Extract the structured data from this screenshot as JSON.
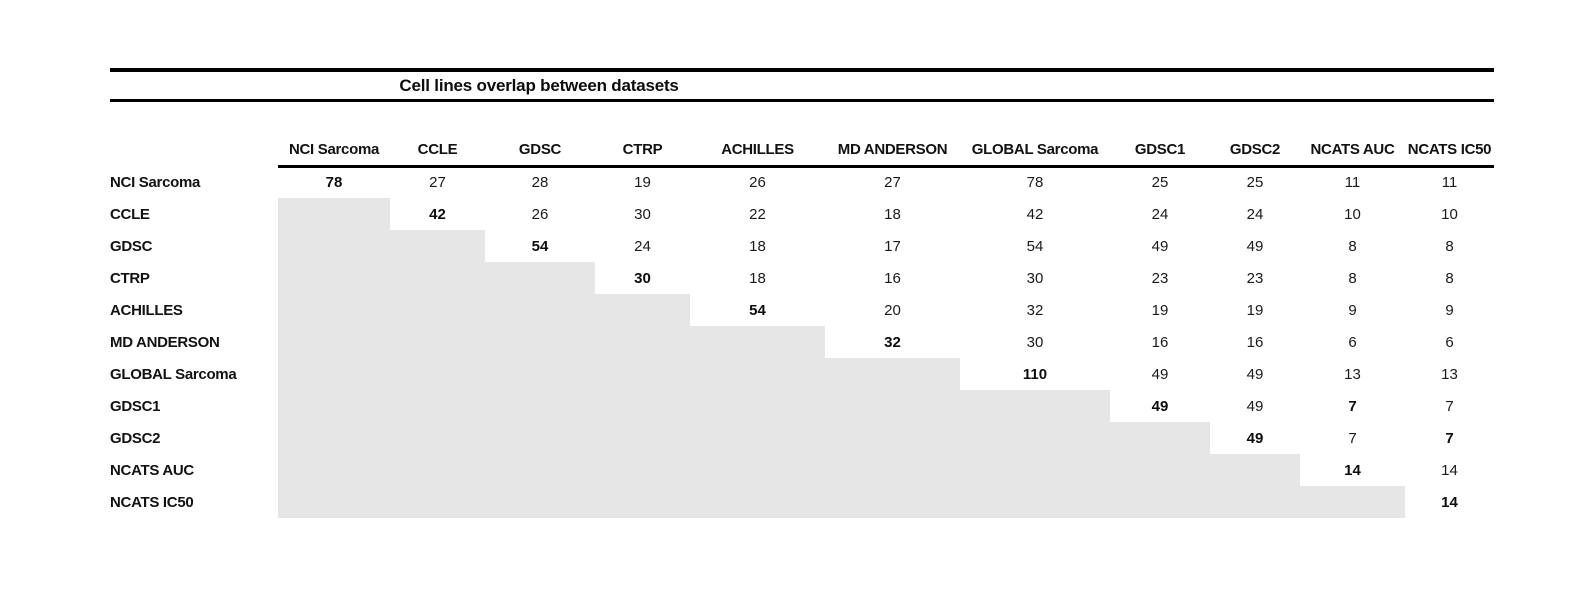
{
  "chart_data": {
    "type": "table",
    "title": "Cell lines overlap between datasets",
    "col_labels": [
      "NCI Sarcoma",
      "CCLE",
      "GDSC",
      "CTRP",
      "ACHILLES",
      "MD ANDERSON",
      "GLOBAL Sarcoma",
      "GDSC1",
      "GDSC2",
      "NCATS AUC",
      "NCATS IC50"
    ],
    "row_labels": [
      "NCI Sarcoma",
      "CCLE",
      "GDSC",
      "CTRP",
      "ACHILLES",
      "MD ANDERSON",
      "GLOBAL Sarcoma",
      "GDSC1",
      "GDSC2",
      "NCATS AUC",
      "NCATS IC50"
    ],
    "matrix": [
      [
        78,
        27,
        28,
        19,
        26,
        27,
        78,
        25,
        25,
        11,
        11
      ],
      [
        null,
        42,
        26,
        30,
        22,
        18,
        42,
        24,
        24,
        10,
        10
      ],
      [
        null,
        null,
        54,
        24,
        18,
        17,
        54,
        49,
        49,
        8,
        8
      ],
      [
        null,
        null,
        null,
        30,
        18,
        16,
        30,
        23,
        23,
        8,
        8
      ],
      [
        null,
        null,
        null,
        null,
        54,
        20,
        32,
        19,
        19,
        9,
        9
      ],
      [
        null,
        null,
        null,
        null,
        null,
        32,
        30,
        16,
        16,
        6,
        6
      ],
      [
        null,
        null,
        null,
        null,
        null,
        null,
        110,
        49,
        49,
        13,
        13
      ],
      [
        null,
        null,
        null,
        null,
        null,
        null,
        null,
        49,
        49,
        7,
        7
      ],
      [
        null,
        null,
        null,
        null,
        null,
        null,
        null,
        null,
        49,
        7,
        7
      ],
      [
        null,
        null,
        null,
        null,
        null,
        null,
        null,
        null,
        null,
        14,
        14
      ],
      [
        null,
        null,
        null,
        null,
        null,
        null,
        null,
        null,
        null,
        null,
        14
      ]
    ],
    "bold_cells": [
      [
        0,
        0
      ],
      [
        1,
        1
      ],
      [
        2,
        2
      ],
      [
        3,
        3
      ],
      [
        4,
        4
      ],
      [
        5,
        5
      ],
      [
        6,
        6
      ],
      [
        7,
        7
      ],
      [
        7,
        9
      ],
      [
        8,
        8
      ],
      [
        8,
        10
      ],
      [
        9,
        9
      ],
      [
        10,
        10
      ]
    ],
    "shaded_region": "lower-triangle",
    "layout": {
      "grid": false,
      "legend": "none"
    }
  },
  "colors": {
    "shade": "#e7e6e6",
    "rule": "#000000",
    "text": "#121212"
  }
}
